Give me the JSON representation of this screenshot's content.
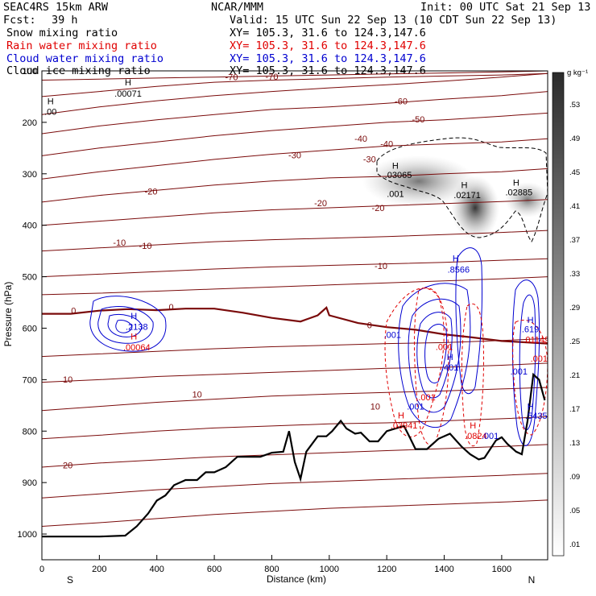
{
  "header": {
    "model": "SEAC4RS 15km ARW",
    "center": "NCAR/MMM",
    "init": "Init: 00 UTC Sat 21 Sep 13",
    "fcst_label": "Fcst:",
    "fcst_value": "39 h",
    "valid": "Valid: 15 UTC Sun 22 Sep 13 (10 CDT Sun 22 Sep 13)",
    "fields": [
      {
        "name": "Snow mixing ratio",
        "xy": "XY= 105.3, 31.6 to 124.3,147.6",
        "color": "#000000"
      },
      {
        "name": "Rain water mixing ratio",
        "xy": "XY= 105.3, 31.6 to 124.3,147.6",
        "color": "#e00000"
      },
      {
        "name": "Cloud water mixing ratio",
        "xy": "XY= 105.3, 31.6 to 124.3,147.6",
        "color": "#0000d0"
      },
      {
        "name": "Cloud ice mixing ratio",
        "xy": "XY= 105.3, 31.6 to 124.3,147.6",
        "color": "#000000"
      }
    ]
  },
  "colors": {
    "temperature": "#7a0a0a",
    "terrain": "#000000",
    "rain": "#e00000",
    "cloud_water": "#0000d0",
    "snow": "#000000"
  },
  "chart_data": {
    "type": "contour",
    "xlabel": "Distance (km)",
    "ylabel": "Pressure (hPa)",
    "xlim": [
      0,
      1760
    ],
    "ylim": [
      1050,
      100
    ],
    "x_ticks": [
      "0",
      "200",
      "400",
      "600",
      "800",
      "1000",
      "1200",
      "1400",
      "1600"
    ],
    "y_ticks": [
      "200",
      "300",
      "400",
      "500",
      "600",
      "700",
      "800",
      "900",
      "1000"
    ],
    "y_top_label": "100",
    "left_end_label": "S",
    "right_end_label": "N",
    "colorbar": {
      "unit": "g kg⁻¹",
      "labels": [
        ".53",
        ".49",
        ".45",
        ".41",
        ".37",
        ".33",
        ".29",
        ".25",
        ".21",
        ".17",
        ".13",
        ".09",
        ".05",
        ".01"
      ]
    },
    "terrain": {
      "x": [
        0,
        80,
        200,
        290,
        330,
        370,
        400,
        430,
        460,
        500,
        540,
        570,
        600,
        640,
        680,
        720,
        760,
        800,
        840,
        860,
        880,
        900,
        920,
        960,
        990,
        1010,
        1040,
        1060,
        1090,
        1110,
        1140,
        1170,
        1200,
        1230,
        1260,
        1280,
        1300,
        1340,
        1380,
        1420,
        1460,
        1490,
        1520,
        1540,
        1580,
        1600,
        1620,
        1650,
        1670,
        1690,
        1710,
        1730,
        1750
      ],
      "p": [
        1005,
        1005,
        1005,
        1003,
        985,
        960,
        935,
        925,
        905,
        895,
        895,
        880,
        880,
        870,
        850,
        850,
        850,
        842,
        840,
        800,
        860,
        893,
        840,
        810,
        810,
        800,
        780,
        795,
        805,
        803,
        820,
        820,
        800,
        795,
        790,
        812,
        835,
        835,
        815,
        805,
        830,
        845,
        855,
        852,
        818,
        812,
        825,
        840,
        845,
        780,
        690,
        700,
        740
      ]
    },
    "temperature_contours": {
      "levels_labeled": [
        "-70",
        "-70",
        "-60",
        "-50",
        "-40",
        "-40",
        "-30",
        "-30",
        "-20",
        "-20",
        "-20",
        "-10",
        "-10",
        "-10",
        "0",
        "0",
        "0",
        "10",
        "10",
        "20"
      ],
      "x": [
        0,
        200,
        400,
        600,
        800,
        1000,
        1200,
        1400,
        1600,
        1760
      ],
      "lines": [
        {
          "level": -80,
          "p": [
            118,
            116,
            114,
            112,
            110,
            108,
            106,
            104,
            102,
            100
          ]
        },
        {
          "level": -70,
          "p": [
            150,
            140,
            130,
            122,
            118,
            115,
            112,
            110,
            108,
            105
          ]
        },
        {
          "level": -60,
          "p": [
            185,
            170,
            158,
            148,
            140,
            133,
            127,
            120,
            112,
            105
          ]
        },
        {
          "level": -50,
          "p": [
            222,
            207,
            195,
            185,
            175,
            170,
            163,
            155,
            148,
            140
          ]
        },
        {
          "level": -40,
          "p": [
            265,
            250,
            238,
            226,
            216,
            208,
            200,
            195,
            188,
            182
          ]
        },
        {
          "level": -30,
          "p": [
            310,
            296,
            284,
            272,
            262,
            254,
            246,
            242,
            238,
            232
          ]
        },
        {
          "level": -20,
          "p": [
            355,
            342,
            332,
            322,
            314,
            308,
            305,
            300,
            296,
            290
          ]
        },
        {
          "level": -10,
          "p": [
            400,
            392,
            384,
            376,
            370,
            366,
            362,
            358,
            354,
            350
          ]
        },
        {
          "level": -10,
          "p": [
            450,
            444,
            438,
            432,
            428,
            425,
            422,
            418,
            414,
            410
          ]
        },
        {
          "level": -10,
          "p": [
            500,
            495,
            490,
            485,
            481,
            478,
            475,
            472,
            468,
            465
          ]
        },
        {
          "level": 0,
          "p": [
            535,
            532,
            528,
            524,
            520,
            516,
            512,
            508,
            504,
            500
          ]
        },
        {
          "level": 0,
          "p": [
            655,
            650,
            645,
            640,
            636,
            633,
            630,
            628,
            624,
            620
          ]
        },
        {
          "level": 10,
          "p": [
            705,
            700,
            694,
            690,
            686,
            682,
            678,
            676,
            672,
            668
          ]
        },
        {
          "level": 10,
          "p": [
            760,
            752,
            744,
            738,
            732,
            728,
            725,
            722,
            718,
            715
          ]
        },
        {
          "level": 20,
          "p": [
            815,
            808,
            800,
            794,
            790,
            786,
            784,
            780,
            776,
            772
          ]
        },
        {
          "level": 20,
          "p": [
            870,
            862,
            856,
            850,
            846,
            842,
            838,
            834,
            830,
            826
          ]
        },
        {
          "level": 20,
          "p": [
            930,
            922,
            914,
            908,
            902,
            898,
            894,
            890,
            886,
            882
          ]
        },
        {
          "level": 30,
          "p": [
            985,
            978,
            970,
            962,
            956,
            950,
            946,
            942,
            938,
            934
          ]
        }
      ],
      "freezing_level": {
        "x": [
          0,
          100,
          200,
          300,
          400,
          500,
          600,
          700,
          800,
          900,
          960,
          990,
          1000,
          1100,
          1200,
          1300,
          1400,
          1500,
          1600,
          1700,
          1760
        ],
        "p": [
          572,
          572,
          566,
          563,
          565,
          562,
          562,
          570,
          580,
          587,
          575,
          560,
          575,
          590,
          598,
          603,
          612,
          618,
          625,
          628,
          630
        ]
      }
    },
    "annotations": [
      {
        "text": "H",
        "x": 300,
        "p": 128,
        "color": "#000000"
      },
      {
        "text": ".00071",
        "x": 300,
        "p": 150,
        "color": "#000000"
      },
      {
        "text": "H",
        "x": 30,
        "p": 165,
        "color": "#000000"
      },
      {
        "text": ".00",
        "x": 30,
        "p": 185,
        "color": "#000000"
      },
      {
        "text": "H",
        "x": 1230,
        "p": 290,
        "color": "#000000"
      },
      {
        "text": ".03065",
        "x": 1240,
        "p": 308,
        "color": "#000000"
      },
      {
        "text": ".001",
        "x": 1230,
        "p": 345,
        "color": "#000000"
      },
      {
        "text": "H",
        "x": 1470,
        "p": 328,
        "color": "#000000"
      },
      {
        "text": ".02171",
        "x": 1480,
        "p": 347,
        "color": "#000000"
      },
      {
        "text": "H",
        "x": 1650,
        "p": 323,
        "color": "#000000"
      },
      {
        "text": ".02885",
        "x": 1660,
        "p": 342,
        "color": "#000000"
      },
      {
        "text": "H",
        "x": 320,
        "p": 582,
        "color": "#0000d0"
      },
      {
        "text": ".2138",
        "x": 330,
        "p": 603,
        "color": "#0000d0"
      },
      {
        "text": "H",
        "x": 320,
        "p": 622,
        "color": "#e00000"
      },
      {
        "text": ".00064",
        "x": 330,
        "p": 643,
        "color": "#e00000"
      },
      {
        "text": "H",
        "x": 1440,
        "p": 470,
        "color": "#0000d0"
      },
      {
        "text": ".8566",
        "x": 1450,
        "p": 492,
        "color": "#0000d0"
      },
      {
        "text": ".001",
        "x": 1220,
        "p": 619,
        "color": "#0000d0"
      },
      {
        "text": ".001",
        "x": 1400,
        "p": 642,
        "color": "#e00000"
      },
      {
        "text": "H",
        "x": 1420,
        "p": 662,
        "color": "#0000d0"
      },
      {
        "text": ".401",
        "x": 1420,
        "p": 682,
        "color": "#0000d0"
      },
      {
        "text": ".001",
        "x": 1340,
        "p": 740,
        "color": "#e00000"
      },
      {
        "text": ".001",
        "x": 1300,
        "p": 758,
        "color": "#0000d0"
      },
      {
        "text": "H",
        "x": 1250,
        "p": 775,
        "color": "#e00000"
      },
      {
        "text": ".03941",
        "x": 1260,
        "p": 795,
        "color": "#e00000"
      },
      {
        "text": "H",
        "x": 1500,
        "p": 795,
        "color": "#e00000"
      },
      {
        "text": ".0824",
        "x": 1510,
        "p": 815,
        "color": "#e00000"
      },
      {
        "text": ".001",
        "x": 1560,
        "p": 815,
        "color": "#0000d0"
      },
      {
        "text": "H",
        "x": 1700,
        "p": 590,
        "color": "#0000d0"
      },
      {
        "text": ".619",
        "x": 1700,
        "p": 608,
        "color": "#0000d0"
      },
      {
        "text": ".01149",
        "x": 1720,
        "p": 628,
        "color": "#e00000"
      },
      {
        "text": ".001",
        "x": 1660,
        "p": 690,
        "color": "#0000d0"
      },
      {
        "text": ".001",
        "x": 1730,
        "p": 665,
        "color": "#e00000"
      },
      {
        "text": "H",
        "x": 1700,
        "p": 758,
        "color": "#0000d0"
      },
      {
        "text": ".5435",
        "x": 1720,
        "p": 776,
        "color": "#0000d0"
      },
      {
        "text": "-70",
        "x": 660,
        "p": 118,
        "color": "#7a0a0a"
      },
      {
        "text": "-70",
        "x": 800,
        "p": 117,
        "color": "#7a0a0a"
      },
      {
        "text": "-60",
        "x": 1250,
        "p": 165,
        "color": "#7a0a0a"
      },
      {
        "text": "-50",
        "x": 1310,
        "p": 200,
        "color": "#7a0a0a"
      },
      {
        "text": "-40",
        "x": 1110,
        "p": 238,
        "color": "#7a0a0a"
      },
      {
        "text": "-40",
        "x": 1200,
        "p": 248,
        "color": "#7a0a0a"
      },
      {
        "text": "-30",
        "x": 880,
        "p": 270,
        "color": "#7a0a0a"
      },
      {
        "text": "-30",
        "x": 1140,
        "p": 278,
        "color": "#7a0a0a"
      },
      {
        "text": "-20",
        "x": 380,
        "p": 340,
        "color": "#7a0a0a"
      },
      {
        "text": "-20",
        "x": 970,
        "p": 363,
        "color": "#7a0a0a"
      },
      {
        "text": "-20",
        "x": 1170,
        "p": 372,
        "color": "#7a0a0a"
      },
      {
        "text": "-10",
        "x": 270,
        "p": 440,
        "color": "#7a0a0a"
      },
      {
        "text": "-10",
        "x": 360,
        "p": 446,
        "color": "#7a0a0a"
      },
      {
        "text": "-10",
        "x": 1180,
        "p": 485,
        "color": "#7a0a0a"
      },
      {
        "text": "0",
        "x": 110,
        "p": 572,
        "color": "#7a0a0a"
      },
      {
        "text": "0",
        "x": 450,
        "p": 565,
        "color": "#7a0a0a"
      },
      {
        "text": "0",
        "x": 1140,
        "p": 600,
        "color": "#7a0a0a"
      },
      {
        "text": "10",
        "x": 90,
        "p": 706,
        "color": "#7a0a0a"
      },
      {
        "text": "10",
        "x": 540,
        "p": 735,
        "color": "#7a0a0a"
      },
      {
        "text": "10",
        "x": 1160,
        "p": 758,
        "color": "#7a0a0a"
      },
      {
        "text": "20",
        "x": 90,
        "p": 872,
        "color": "#7a0a0a"
      }
    ]
  }
}
